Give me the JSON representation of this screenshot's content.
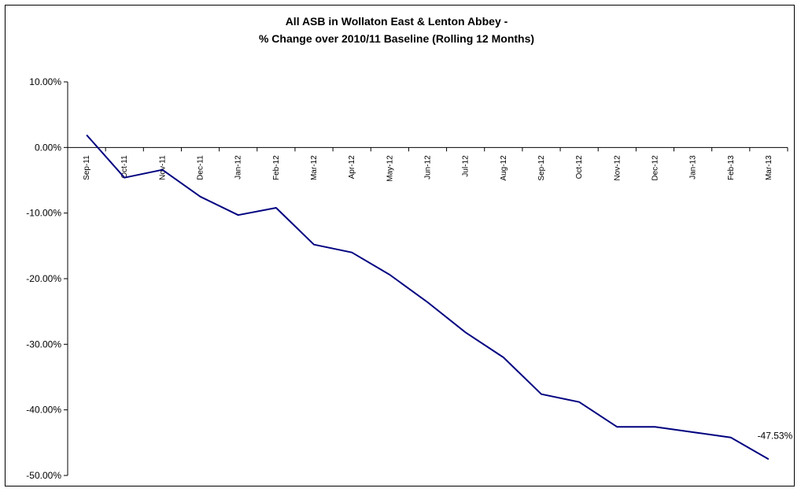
{
  "chart_data": {
    "type": "line",
    "title": "All ASB in Wollaton East & Lenton Abbey -",
    "subtitle": "% Change over 2010/11 Baseline (Rolling 12 Months)",
    "xlabel": "",
    "ylabel": "",
    "categories": [
      "Sep-11",
      "Oct-11",
      "Nov-11",
      "Dec-11",
      "Jan-12",
      "Feb-12",
      "Mar-12",
      "Apr-12",
      "May-12",
      "Jun-12",
      "Jul-12",
      "Aug-12",
      "Sep-12",
      "Oct-12",
      "Nov-12",
      "Dec-12",
      "Jan-13",
      "Feb-13",
      "Mar-13"
    ],
    "series": [
      {
        "values": [
          1.9,
          -4.6,
          -3.4,
          -7.5,
          -10.3,
          -9.2,
          -14.8,
          -16.0,
          -19.4,
          -23.6,
          -28.2,
          -32.0,
          -37.6,
          -38.8,
          -42.6,
          -42.6,
          -43.4,
          -44.2,
          -47.53
        ]
      }
    ],
    "ylim": [
      -50,
      10
    ],
    "yticks": [
      "10.00%",
      "0.00%",
      "-10.00%",
      "-20.00%",
      "-30.00%",
      "-40.00%",
      "-50.00%"
    ],
    "ytick_values": [
      10,
      0,
      -10,
      -20,
      -30,
      -40,
      -50
    ],
    "data_labels": [
      {
        "index": 18,
        "text": "-47.53%"
      }
    ],
    "line_color": "#000080",
    "grid": false,
    "legend": "none"
  }
}
